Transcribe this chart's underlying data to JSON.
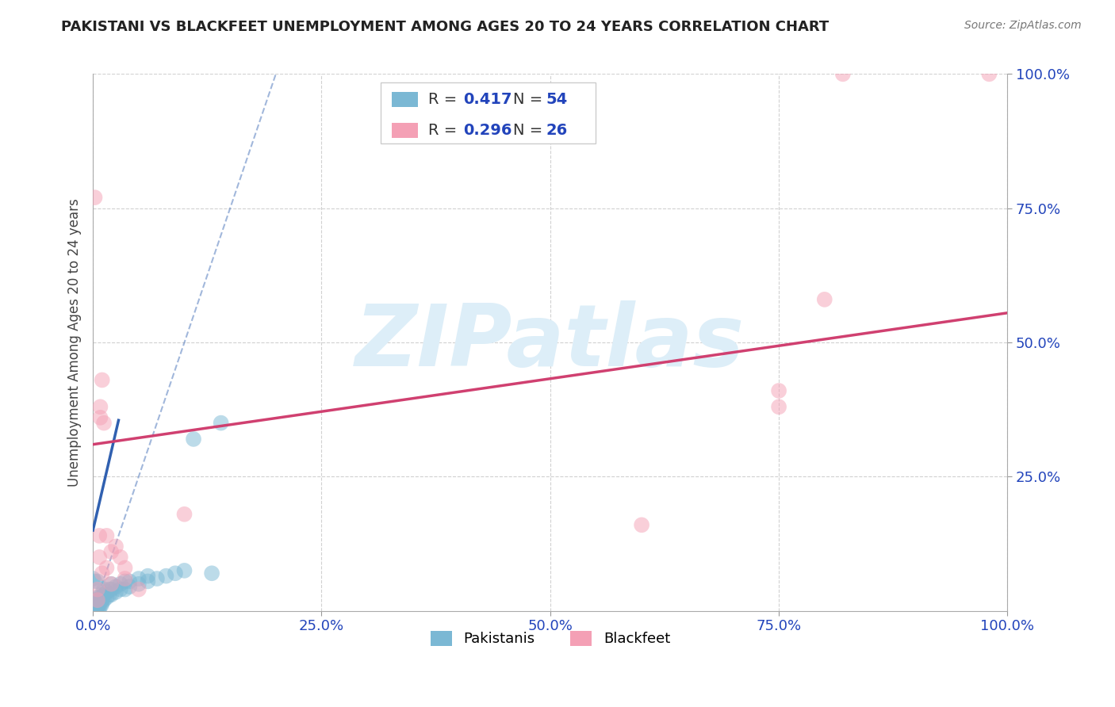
{
  "title": "PAKISTANI VS BLACKFEET UNEMPLOYMENT AMONG AGES 20 TO 24 YEARS CORRELATION CHART",
  "source": "Source: ZipAtlas.com",
  "ylabel": "Unemployment Among Ages 20 to 24 years",
  "xlim": [
    0,
    1
  ],
  "ylim": [
    0,
    1
  ],
  "xtick_labels": [
    "0.0%",
    "25.0%",
    "50.0%",
    "75.0%",
    "100.0%"
  ],
  "xtick_vals": [
    0,
    0.25,
    0.5,
    0.75,
    1.0
  ],
  "ytick_labels": [
    "100.0%",
    "75.0%",
    "50.0%",
    "25.0%"
  ],
  "ytick_vals": [
    1.0,
    0.75,
    0.5,
    0.25
  ],
  "r_pakistani": 0.417,
  "n_pakistani": 54,
  "r_blackfeet": 0.296,
  "n_blackfeet": 26,
  "pakistani_color": "#7bb8d4",
  "blackfeet_color": "#f4a0b5",
  "pakistani_line_color": "#3060b0",
  "blackfeet_line_color": "#d04070",
  "pakistani_scatter": [
    [
      0.0,
      0.0
    ],
    [
      0.002,
      0.005
    ],
    [
      0.003,
      0.01
    ],
    [
      0.003,
      0.02
    ],
    [
      0.004,
      0.0
    ],
    [
      0.004,
      0.005
    ],
    [
      0.005,
      0.01
    ],
    [
      0.005,
      0.015
    ],
    [
      0.005,
      0.02
    ],
    [
      0.005,
      0.025
    ],
    [
      0.006,
      0.0
    ],
    [
      0.006,
      0.01
    ],
    [
      0.007,
      0.005
    ],
    [
      0.007,
      0.015
    ],
    [
      0.008,
      0.02
    ],
    [
      0.008,
      0.025
    ],
    [
      0.009,
      0.01
    ],
    [
      0.009,
      0.02
    ],
    [
      0.009,
      0.03
    ],
    [
      0.01,
      0.015
    ],
    [
      0.01,
      0.02
    ],
    [
      0.01,
      0.025
    ],
    [
      0.012,
      0.02
    ],
    [
      0.012,
      0.03
    ],
    [
      0.012,
      0.04
    ],
    [
      0.015,
      0.025
    ],
    [
      0.015,
      0.035
    ],
    [
      0.018,
      0.03
    ],
    [
      0.018,
      0.04
    ],
    [
      0.02,
      0.03
    ],
    [
      0.02,
      0.04
    ],
    [
      0.02,
      0.05
    ],
    [
      0.025,
      0.035
    ],
    [
      0.025,
      0.045
    ],
    [
      0.03,
      0.04
    ],
    [
      0.03,
      0.05
    ],
    [
      0.035,
      0.04
    ],
    [
      0.035,
      0.055
    ],
    [
      0.04,
      0.045
    ],
    [
      0.04,
      0.055
    ],
    [
      0.05,
      0.05
    ],
    [
      0.05,
      0.06
    ],
    [
      0.06,
      0.055
    ],
    [
      0.06,
      0.065
    ],
    [
      0.07,
      0.06
    ],
    [
      0.08,
      0.065
    ],
    [
      0.09,
      0.07
    ],
    [
      0.1,
      0.075
    ],
    [
      0.11,
      0.32
    ],
    [
      0.13,
      0.07
    ],
    [
      0.14,
      0.35
    ],
    [
      0.0,
      0.06
    ],
    [
      0.002,
      0.055
    ],
    [
      0.005,
      0.055
    ]
  ],
  "blackfeet_scatter": [
    [
      0.002,
      0.77
    ],
    [
      0.005,
      0.02
    ],
    [
      0.005,
      0.04
    ],
    [
      0.007,
      0.1
    ],
    [
      0.007,
      0.14
    ],
    [
      0.008,
      0.36
    ],
    [
      0.008,
      0.38
    ],
    [
      0.01,
      0.07
    ],
    [
      0.01,
      0.43
    ],
    [
      0.012,
      0.35
    ],
    [
      0.015,
      0.14
    ],
    [
      0.015,
      0.08
    ],
    [
      0.02,
      0.11
    ],
    [
      0.02,
      0.05
    ],
    [
      0.025,
      0.12
    ],
    [
      0.03,
      0.1
    ],
    [
      0.035,
      0.06
    ],
    [
      0.035,
      0.08
    ],
    [
      0.05,
      0.04
    ],
    [
      0.1,
      0.18
    ],
    [
      0.6,
      0.16
    ],
    [
      0.75,
      0.41
    ],
    [
      0.75,
      0.38
    ],
    [
      0.82,
      1.0
    ],
    [
      0.98,
      1.0
    ],
    [
      0.8,
      0.58
    ]
  ],
  "pakistani_line": [
    0.0,
    0.15,
    0.028,
    0.355
  ],
  "blackfeet_line": [
    0.0,
    0.31,
    1.0,
    0.555
  ],
  "diag_line": [
    0.0,
    0.0,
    0.2,
    1.0
  ],
  "background_color": "#ffffff",
  "grid_color": "#cccccc",
  "watermark": "ZIPatlas",
  "watermark_color": "#ddeef8"
}
